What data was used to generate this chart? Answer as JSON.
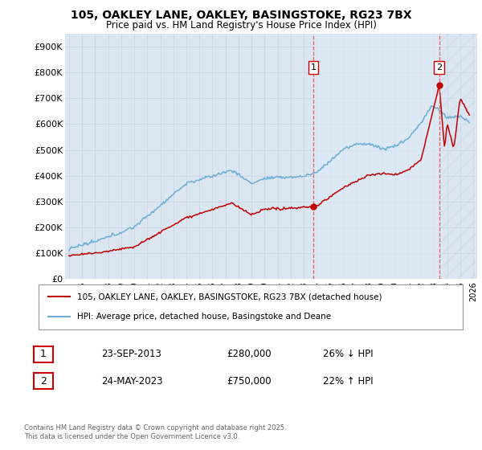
{
  "title_line1": "105, OAKLEY LANE, OAKLEY, BASINGSTOKE, RG23 7BX",
  "title_line2": "Price paid vs. HM Land Registry's House Price Index (HPI)",
  "ylim": [
    0,
    950000
  ],
  "yticks": [
    0,
    100000,
    200000,
    300000,
    400000,
    500000,
    600000,
    700000,
    800000,
    900000
  ],
  "ytick_labels": [
    "£0",
    "£100K",
    "£200K",
    "£300K",
    "£400K",
    "£500K",
    "£600K",
    "£700K",
    "£800K",
    "£900K"
  ],
  "hpi_color": "#6aaed6",
  "property_color": "#c00000",
  "background_color": "#dce6f1",
  "grid_color": "#c8d4e8",
  "vline_color": "#e06060",
  "point1_date": "23-SEP-2013",
  "point1_price": 280000,
  "point1_pct": "26% ↓ HPI",
  "point2_date": "24-MAY-2023",
  "point2_price": 750000,
  "point2_pct": "22% ↑ HPI",
  "legend_line1": "105, OAKLEY LANE, OAKLEY, BASINGSTOKE, RG23 7BX (detached house)",
  "legend_line2": "HPI: Average price, detached house, Basingstoke and Deane",
  "footer": "Contains HM Land Registry data © Crown copyright and database right 2025.\nThis data is licensed under the Open Government Licence v3.0.",
  "vline1_x": 2013.73,
  "vline2_x": 2023.39,
  "xmin": 1995,
  "xmax": 2026
}
